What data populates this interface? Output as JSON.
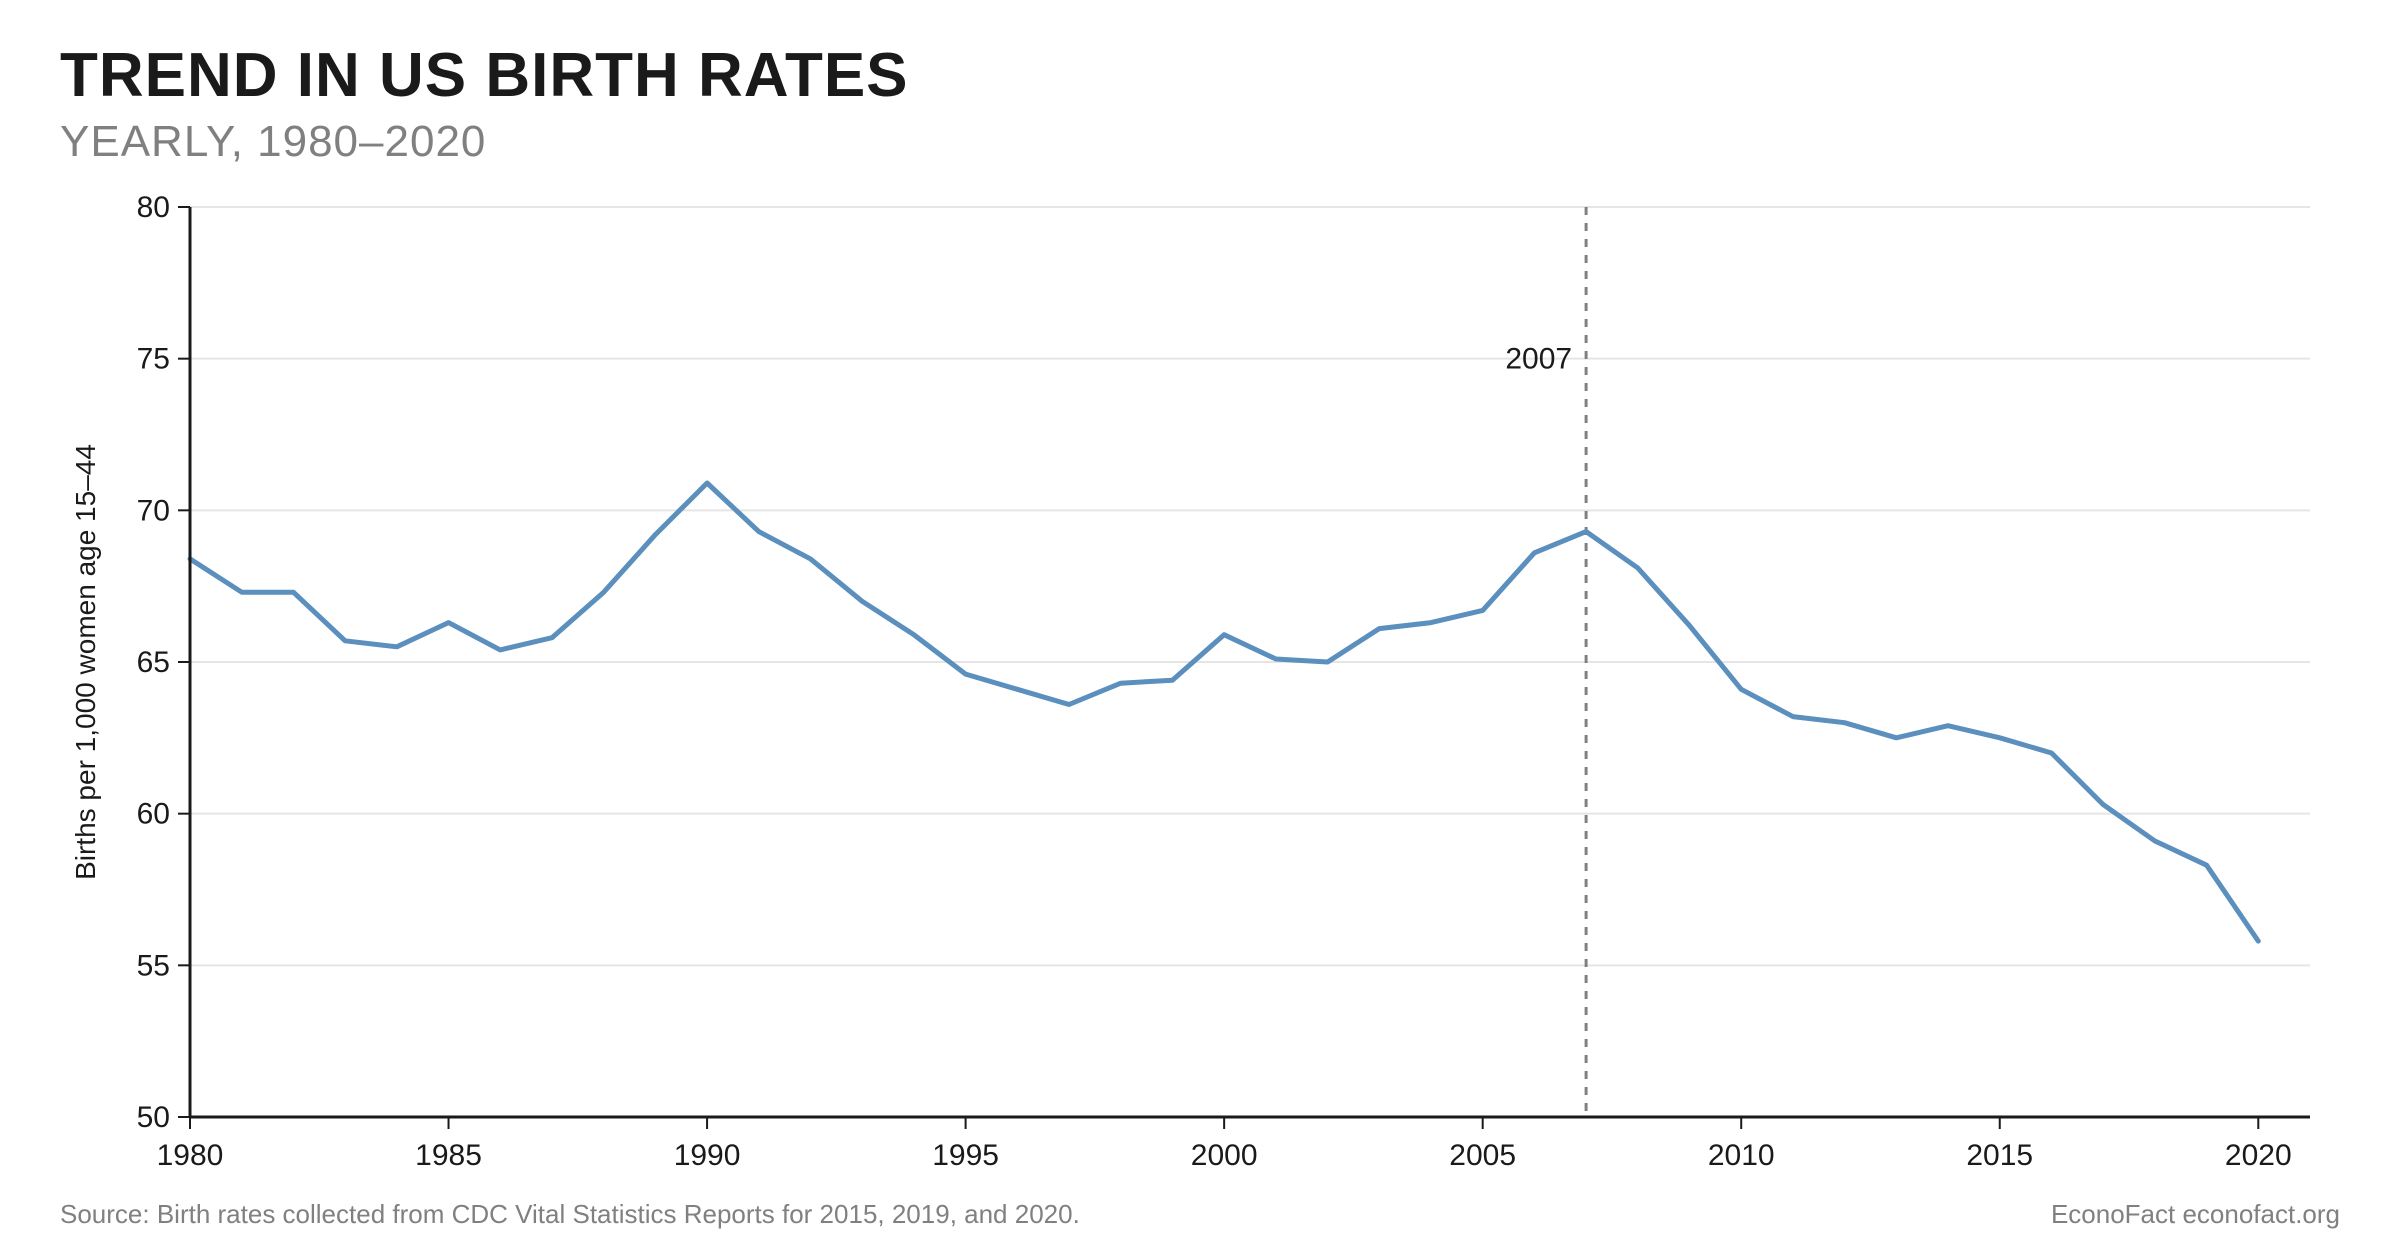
{
  "title": "TREND IN US BIRTH RATES",
  "subtitle": "YEARLY, 1980–2020",
  "source_note": "Source: Birth rates collected from CDC Vital Statistics Reports for 2015, 2019, and 2020.",
  "credit": "EconoFact  econofact.org",
  "chart": {
    "type": "line",
    "ylabel": "Births per 1,000 women age 15–44",
    "ylabel_fontsize": 28,
    "tick_fontsize": 30,
    "background_color": "#ffffff",
    "grid_color": "#e5e5e5",
    "axis_color": "#1a1a1a",
    "line_color": "#5b8fbd",
    "line_width": 5,
    "reference_line": {
      "x": 2007,
      "label": "2007",
      "color": "#808080",
      "width": 3,
      "dash": "8 8"
    },
    "xlim": [
      1980,
      2021
    ],
    "ylim": [
      50,
      80
    ],
    "xtick_step": 5,
    "xticks": [
      1980,
      1985,
      1990,
      1995,
      2000,
      2005,
      2010,
      2015,
      2020
    ],
    "ytick_step": 5,
    "yticks": [
      50,
      55,
      60,
      65,
      70,
      75,
      80
    ],
    "years": [
      1980,
      1981,
      1982,
      1983,
      1984,
      1985,
      1986,
      1987,
      1988,
      1989,
      1990,
      1991,
      1992,
      1993,
      1994,
      1995,
      1996,
      1997,
      1998,
      1999,
      2000,
      2001,
      2002,
      2003,
      2004,
      2005,
      2006,
      2007,
      2008,
      2009,
      2010,
      2011,
      2012,
      2013,
      2014,
      2015,
      2016,
      2017,
      2018,
      2019,
      2020
    ],
    "values": [
      68.4,
      67.3,
      67.3,
      65.7,
      65.5,
      66.3,
      65.4,
      65.8,
      67.3,
      69.2,
      70.9,
      69.3,
      68.4,
      67.0,
      65.9,
      64.6,
      64.1,
      63.6,
      64.3,
      64.4,
      65.9,
      65.1,
      65.0,
      66.1,
      66.3,
      66.7,
      68.6,
      69.3,
      68.1,
      66.2,
      64.1,
      63.2,
      63.0,
      62.5,
      62.9,
      62.5,
      62.0,
      60.3,
      59.1,
      58.3,
      55.8
    ]
  }
}
